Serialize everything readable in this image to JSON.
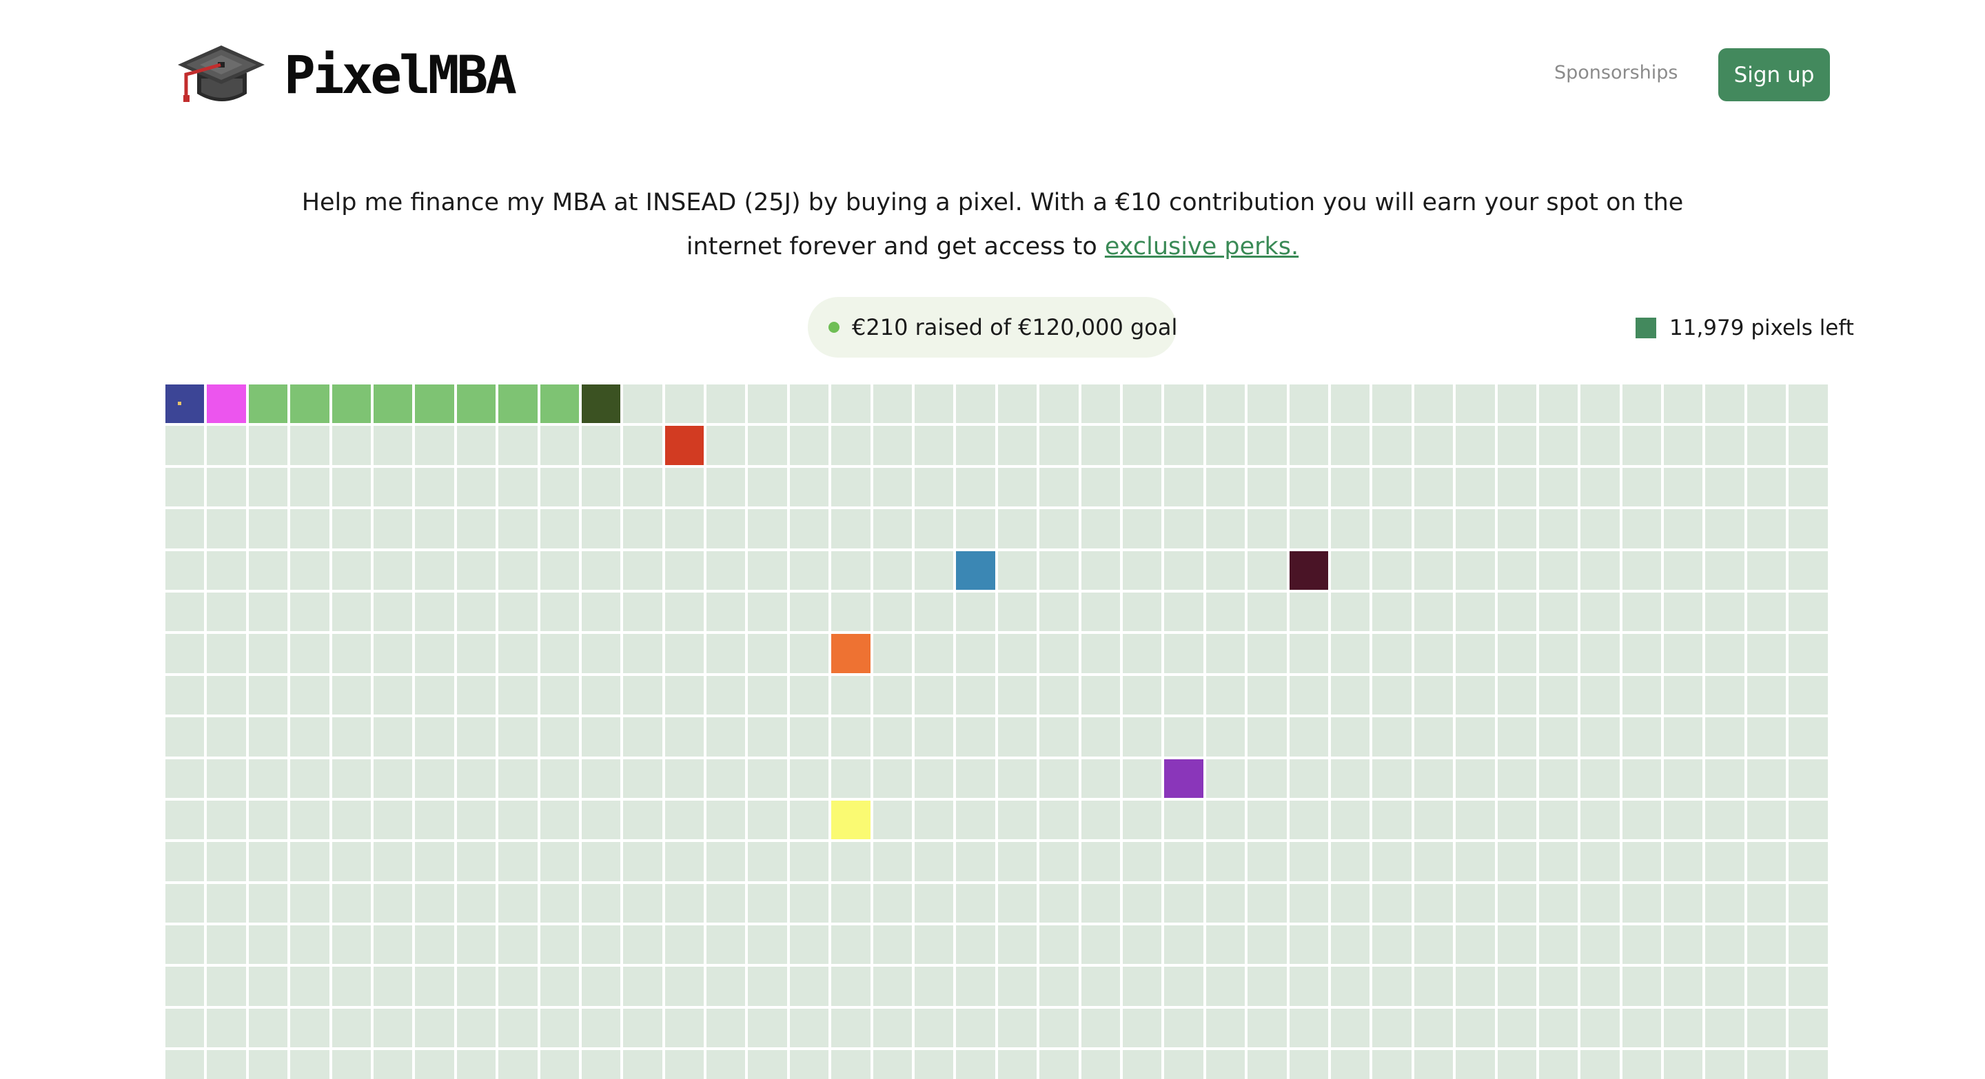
{
  "header": {
    "logo_text": "PixelMBA",
    "logo_icon": "graduation-cap-icon",
    "nav_link": "Sponsorships",
    "signup_label": "Sign up"
  },
  "intro": {
    "text_before": "Help me finance my MBA at INSEAD (25J) by buying a pixel. With a €10 contribution you will earn your spot on the internet forever and get access to ",
    "link_text": "exclusive perks."
  },
  "stats": {
    "raised_text": "€210 raised of €120,000 goal",
    "pixels_left_text": "11,979 pixels left"
  },
  "colors": {
    "brand_green": "#43895d",
    "empty_pixel": "#dce8dd",
    "link_green": "#3a8a56",
    "progress_dot": "#6fbe55",
    "pill_bg": "#f0f5ea"
  },
  "grid": {
    "columns": 40,
    "visible_rows": 17,
    "filled_pixels": [
      {
        "row": 0,
        "col": 0,
        "color": "#3c4596"
      },
      {
        "row": 0,
        "col": 1,
        "color": "#ec55ee"
      },
      {
        "row": 0,
        "col": 2,
        "color": "#7ec373"
      },
      {
        "row": 0,
        "col": 3,
        "color": "#7ec373"
      },
      {
        "row": 0,
        "col": 4,
        "color": "#7ec373"
      },
      {
        "row": 0,
        "col": 5,
        "color": "#7ec373"
      },
      {
        "row": 0,
        "col": 6,
        "color": "#7ec373"
      },
      {
        "row": 0,
        "col": 7,
        "color": "#7ec373"
      },
      {
        "row": 0,
        "col": 8,
        "color": "#7ec373"
      },
      {
        "row": 0,
        "col": 9,
        "color": "#7ec373"
      },
      {
        "row": 0,
        "col": 10,
        "color": "#3b5222"
      },
      {
        "row": 1,
        "col": 12,
        "color": "#d23b22"
      },
      {
        "row": 4,
        "col": 19,
        "color": "#3b87b4"
      },
      {
        "row": 4,
        "col": 27,
        "color": "#4a1426"
      },
      {
        "row": 6,
        "col": 16,
        "color": "#ee7232"
      },
      {
        "row": 9,
        "col": 24,
        "color": "#8a36ba"
      },
      {
        "row": 10,
        "col": 16,
        "color": "#fafa72"
      }
    ]
  }
}
